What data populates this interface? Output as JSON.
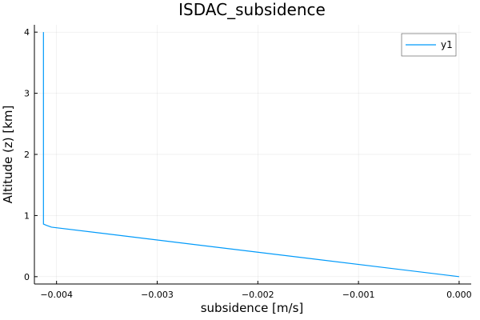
{
  "chart_data": {
    "type": "line",
    "title": "ISDAC_subsidence",
    "xlabel": "subsidence [m/s]",
    "ylabel": "Altitude (z) [km]",
    "xlim": [
      -0.00422,
      0.00012
    ],
    "ylim": [
      -0.12,
      4.12
    ],
    "xticks": [
      -0.004,
      -0.003,
      -0.002,
      -0.001,
      0.0
    ],
    "xtick_labels": [
      "−0.004",
      "−0.003",
      "−0.002",
      "−0.001",
      "0.000"
    ],
    "yticks": [
      0,
      1,
      2,
      3,
      4
    ],
    "ytick_labels": [
      "0",
      "1",
      "2",
      "3",
      "4"
    ],
    "grid": true,
    "legend_position": "top-right",
    "series": [
      {
        "name": "y1",
        "color": "#009AFA",
        "x": [
          0.0,
          -0.00405,
          -0.0041,
          -0.00413,
          -0.00413
        ],
        "y": [
          0.0,
          0.81,
          0.84,
          0.86,
          4.0
        ]
      }
    ]
  }
}
